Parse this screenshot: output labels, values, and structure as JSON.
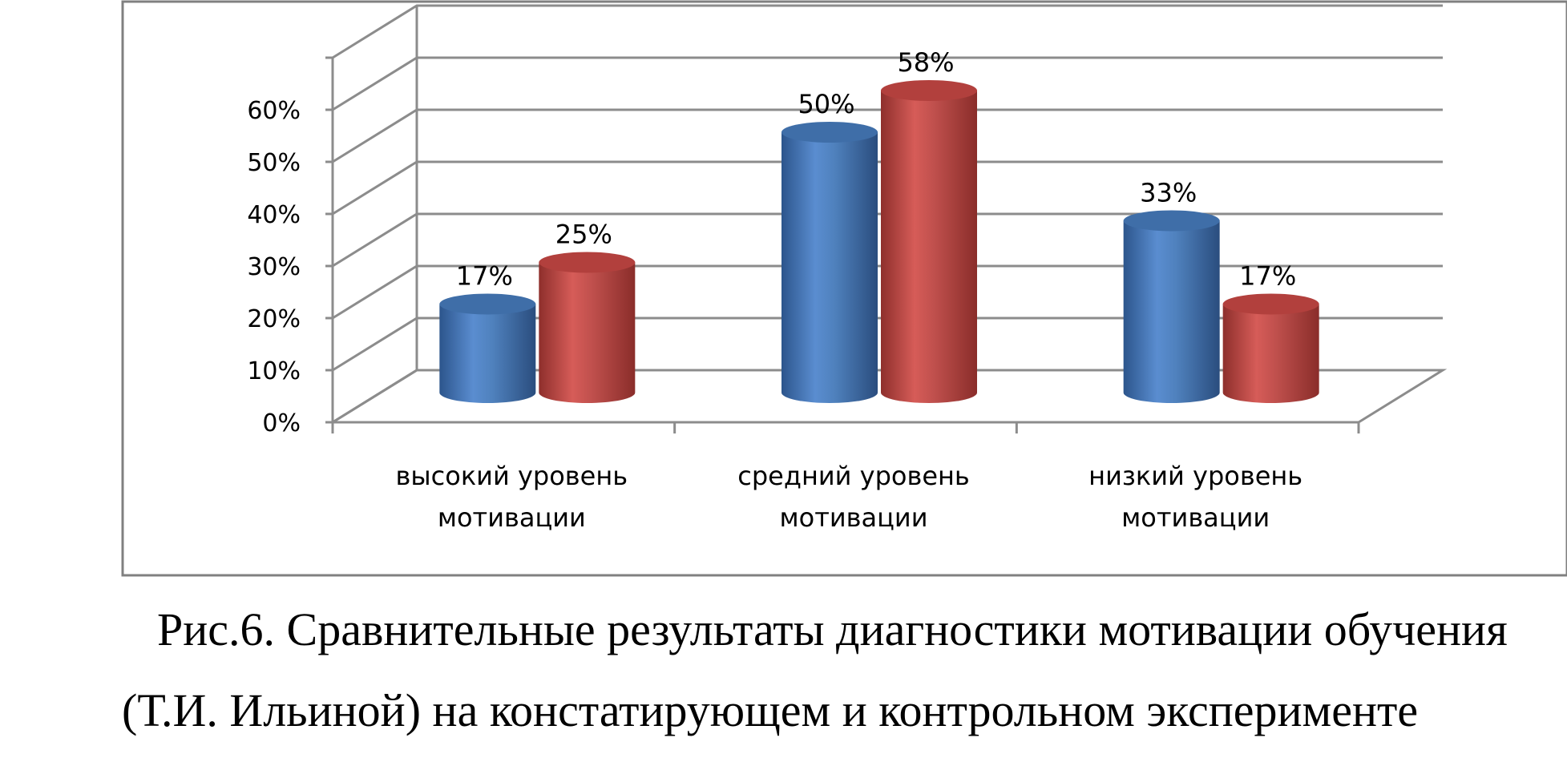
{
  "chart_data": {
    "type": "bar",
    "style": "3d-cylinder",
    "categories": [
      [
        "высокий уровень",
        "мотивации"
      ],
      [
        "средний уровень",
        "мотивации"
      ],
      [
        "низкий уровень",
        "мотивации"
      ]
    ],
    "series": [
      {
        "color": "#4f81bd",
        "values": [
          17,
          50,
          33
        ],
        "labels": [
          "17%",
          "50%",
          "33%"
        ]
      },
      {
        "color": "#c0504d",
        "values": [
          25,
          58,
          17
        ],
        "labels": [
          "25%",
          "58%",
          "17%"
        ]
      }
    ],
    "yticks": [
      "0%",
      "10%",
      "20%",
      "30%",
      "40%",
      "50%",
      "60%"
    ],
    "ylim": [
      0,
      70
    ],
    "grid": true,
    "legend": "none"
  },
  "caption": {
    "line1": "Рис.6. Сравнительные результаты диагностики мотивации обучения",
    "line2": "(Т.И. Ильиной) на констатирующем и контрольном эксперименте"
  }
}
